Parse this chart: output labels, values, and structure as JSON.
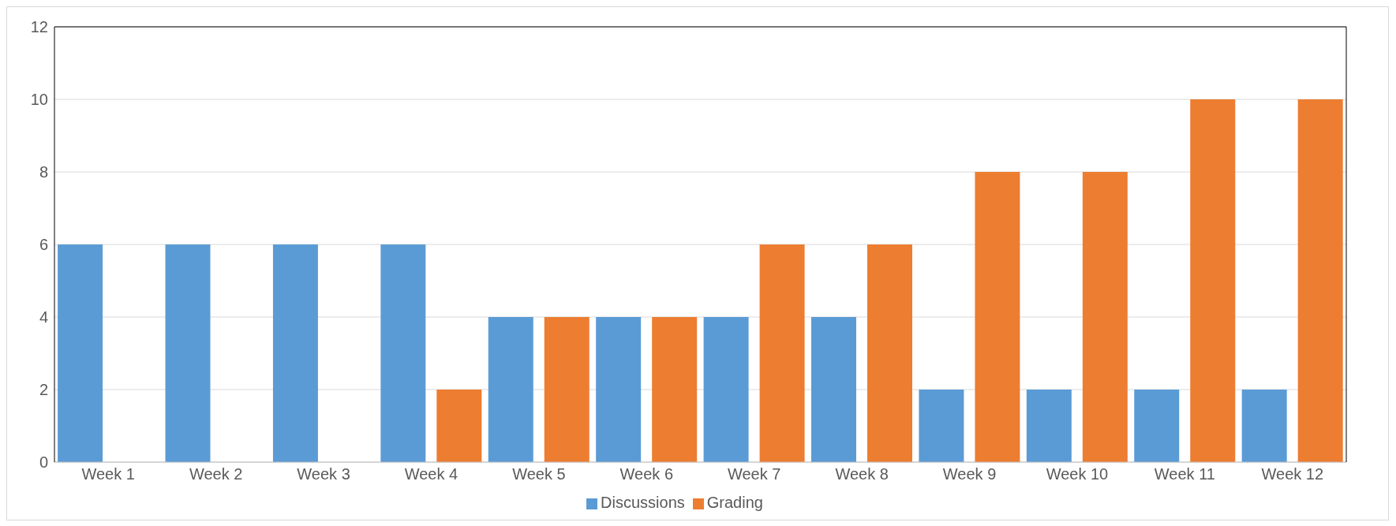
{
  "chart_data": {
    "type": "bar",
    "categories": [
      "Week 1",
      "Week 2",
      "Week 3",
      "Week 4",
      "Week 5",
      "Week 6",
      "Week 7",
      "Week 8",
      "Week 9",
      "Week 10",
      "Week 11",
      "Week 12"
    ],
    "series": [
      {
        "name": "Discussions",
        "color": "#5b9bd5",
        "values": [
          6,
          6,
          6,
          6,
          4,
          4,
          4,
          4,
          2,
          2,
          2,
          2
        ]
      },
      {
        "name": "Grading",
        "color": "#ed7d31",
        "values": [
          0,
          0,
          0,
          2,
          4,
          4,
          6,
          6,
          8,
          8,
          10,
          10
        ]
      }
    ],
    "ylim": [
      0,
      12
    ],
    "yticks": [
      0,
      2,
      4,
      6,
      8,
      10,
      12
    ],
    "grid": "y",
    "legend": "bottom"
  }
}
